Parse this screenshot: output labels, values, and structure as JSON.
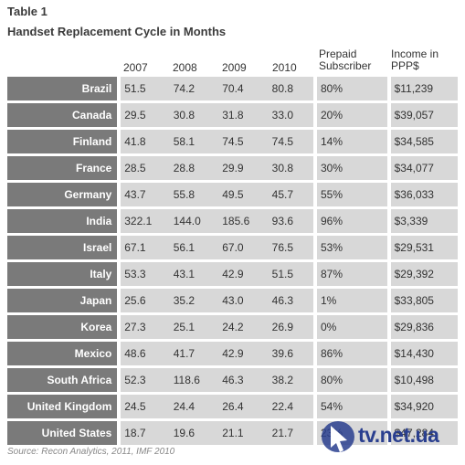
{
  "table": {
    "label": "Table 1",
    "title": "Handset Replacement Cycle in Months",
    "columns": [
      "2007",
      "2008",
      "2009",
      "2010",
      "Prepaid Subscriber",
      "Income in PPP$"
    ],
    "rows": [
      {
        "country": "Brazil",
        "y2007": "51.5",
        "y2008": "74.2",
        "y2009": "70.4",
        "y2010": "80.8",
        "prepaid": "80%",
        "income": "$11,239"
      },
      {
        "country": "Canada",
        "y2007": "29.5",
        "y2008": "30.8",
        "y2009": "31.8",
        "y2010": "33.0",
        "prepaid": "20%",
        "income": "$39,057"
      },
      {
        "country": "Finland",
        "y2007": "41.8",
        "y2008": "58.1",
        "y2009": "74.5",
        "y2010": "74.5",
        "prepaid": "14%",
        "income": "$34,585"
      },
      {
        "country": "France",
        "y2007": "28.5",
        "y2008": "28.8",
        "y2009": "29.9",
        "y2010": "30.8",
        "prepaid": "30%",
        "income": "$34,077"
      },
      {
        "country": "Germany",
        "y2007": "43.7",
        "y2008": "55.8",
        "y2009": "49.5",
        "y2010": "45.7",
        "prepaid": "55%",
        "income": "$36,033"
      },
      {
        "country": "India",
        "y2007": "322.1",
        "y2008": "144.0",
        "y2009": "185.6",
        "y2010": "93.6",
        "prepaid": "96%",
        "income": "$3,339"
      },
      {
        "country": "Israel",
        "y2007": "67.1",
        "y2008": "56.1",
        "y2009": "67.0",
        "y2010": "76.5",
        "prepaid": "53%",
        "income": "$29,531"
      },
      {
        "country": "Italy",
        "y2007": "53.3",
        "y2008": "43.1",
        "y2009": "42.9",
        "y2010": "51.5",
        "prepaid": "87%",
        "income": "$29,392"
      },
      {
        "country": "Japan",
        "y2007": "25.6",
        "y2008": "35.2",
        "y2009": "43.0",
        "y2010": "46.3",
        "prepaid": "1%",
        "income": "$33,805"
      },
      {
        "country": "Korea",
        "y2007": "27.3",
        "y2008": "25.1",
        "y2009": "24.2",
        "y2010": "26.9",
        "prepaid": "0%",
        "income": "$29,836"
      },
      {
        "country": "Mexico",
        "y2007": "48.6",
        "y2008": "41.7",
        "y2009": "42.9",
        "y2010": "39.6",
        "prepaid": "86%",
        "income": "$14,430"
      },
      {
        "country": "South Africa",
        "y2007": "52.3",
        "y2008": "118.6",
        "y2009": "46.3",
        "y2010": "38.2",
        "prepaid": "80%",
        "income": "$10,498"
      },
      {
        "country": "United Kingdom",
        "y2007": "24.5",
        "y2008": "24.4",
        "y2009": "26.4",
        "y2010": "22.4",
        "prepaid": "54%",
        "income": "$34,920"
      },
      {
        "country": "United States",
        "y2007": "18.7",
        "y2008": "19.6",
        "y2009": "21.1",
        "y2010": "21.7",
        "prepaid": "23%",
        "income": "$47,284"
      }
    ]
  },
  "source": "Source: Recon Analytics, 2011, IMF 2010",
  "watermark": {
    "text": "tv.net.ua",
    "icon": "pointer-arrow-icon"
  },
  "colors": {
    "country_cell": "#7a7a7a",
    "data_cell": "#d8d8d8",
    "watermark": "#2a3f8f"
  }
}
